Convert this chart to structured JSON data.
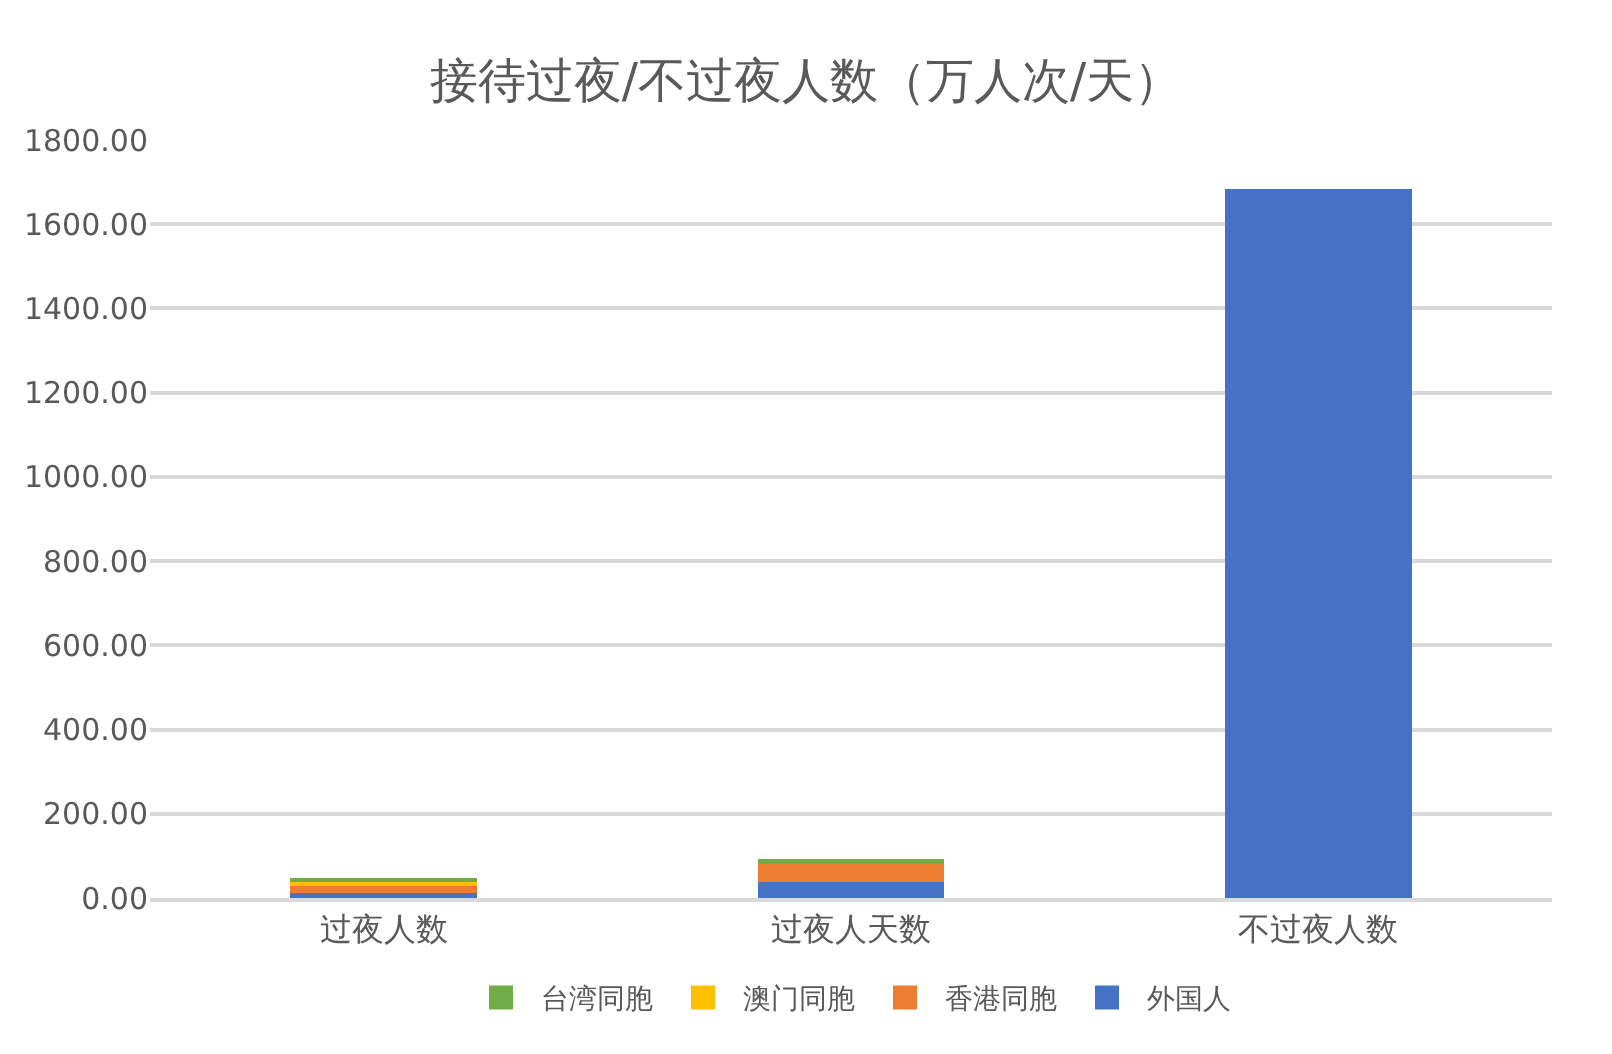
{
  "chart_data": {
    "type": "bar",
    "title": "接待过夜/不过夜人数（万人次/天）",
    "stacked": true,
    "categories": [
      "过夜人数",
      "过夜人天数",
      "不过夜人数"
    ],
    "series": [
      {
        "name": "外国人",
        "color": "#4472c4",
        "values": [
          12,
          38,
          1683
        ]
      },
      {
        "name": "香港同胞",
        "color": "#ed7d31",
        "values": [
          21,
          44,
          0
        ]
      },
      {
        "name": "澳门同胞",
        "color": "#ffc000",
        "values": [
          7,
          1,
          0
        ]
      },
      {
        "name": "台湾同胞",
        "color": "#70ad47",
        "values": [
          4,
          9,
          0
        ]
      }
    ],
    "ylim": [
      0,
      1800
    ],
    "yticks": [
      {
        "value": 0,
        "label": "0.00"
      },
      {
        "value": 200,
        "label": "200.00"
      },
      {
        "value": 400,
        "label": "400.00"
      },
      {
        "value": 600,
        "label": "600.00"
      },
      {
        "value": 800,
        "label": "800.00"
      },
      {
        "value": 1000,
        "label": "1000.00"
      },
      {
        "value": 1200,
        "label": "1200.00"
      },
      {
        "value": 1400,
        "label": "1400.00"
      },
      {
        "value": 1600,
        "label": "1600.00"
      },
      {
        "value": 1800,
        "label": "1800.00"
      }
    ],
    "grid": "y",
    "legend": "bottom"
  }
}
